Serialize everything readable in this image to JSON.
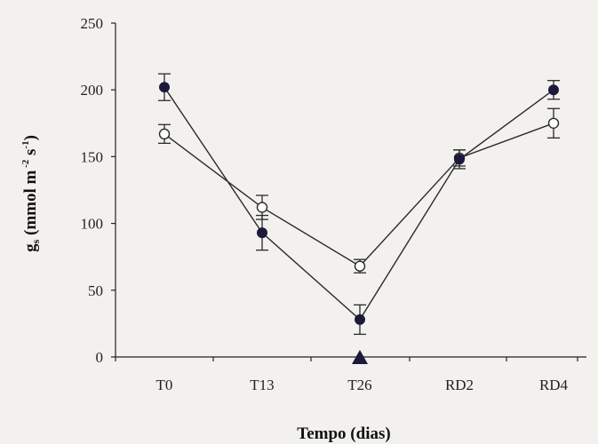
{
  "chart_data": {
    "type": "line",
    "categories": [
      "T0",
      "T13",
      "T26",
      "RD2",
      "RD4"
    ],
    "series": [
      {
        "marker": "filled-circle",
        "color": "#1c1a3a",
        "values": [
          202,
          93,
          28,
          148,
          200
        ],
        "error": [
          10,
          13,
          11,
          7,
          7
        ]
      },
      {
        "marker": "open-circle",
        "color": "#1c1a3a",
        "values": [
          167,
          112,
          68,
          149,
          175
        ],
        "error": [
          7,
          9,
          5,
          6,
          11
        ]
      }
    ],
    "ylim": [
      0,
      250
    ],
    "yticks": [
      0,
      50,
      100,
      150,
      200,
      250
    ],
    "xlabel": "Tempo (dias)",
    "ylabel": {
      "g": "g",
      "sub": "s",
      "open": " (mmol m",
      "sup1": " -2",
      "s": " s",
      "sup2": "-1",
      "close": ")"
    },
    "marked_category": "T26",
    "marker_triangle_color": "#1c1a3a",
    "grid": false
  }
}
